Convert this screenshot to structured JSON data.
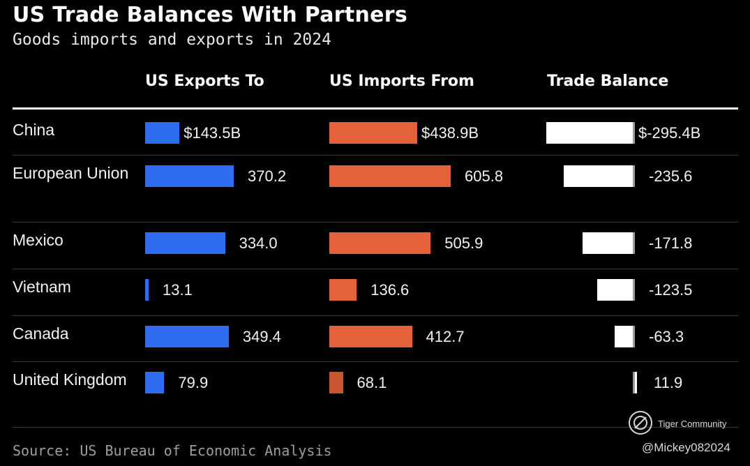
{
  "chart_data": {
    "type": "table",
    "title": "US Trade Balances With Partners",
    "subtitle": "Goods imports and exports in 2024",
    "columns": [
      "US Exports To",
      "US Imports From",
      "Trade Balance"
    ],
    "unit": "billion USD",
    "rows": [
      {
        "country": "China",
        "exports": 143.5,
        "imports": 438.9,
        "balance": -295.4,
        "exports_label": "$143.5B",
        "imports_label": "$438.9B",
        "balance_label": "$-295.4B"
      },
      {
        "country": "European Union",
        "exports": 370.2,
        "imports": 605.8,
        "balance": -235.6,
        "exports_label": "370.2",
        "imports_label": "605.8",
        "balance_label": "-235.6"
      },
      {
        "country": "Mexico",
        "exports": 334.0,
        "imports": 505.9,
        "balance": -171.8,
        "exports_label": "334.0",
        "imports_label": "505.9",
        "balance_label": "-171.8"
      },
      {
        "country": "Vietnam",
        "exports": 13.1,
        "imports": 136.6,
        "balance": -123.5,
        "exports_label": "13.1",
        "imports_label": "136.6",
        "balance_label": "-123.5"
      },
      {
        "country": "Canada",
        "exports": 349.4,
        "imports": 412.7,
        "balance": -63.3,
        "exports_label": "349.4",
        "imports_label": "412.7",
        "balance_label": "-63.3"
      },
      {
        "country": "United Kingdom",
        "exports": 79.9,
        "imports": 68.1,
        "balance": 11.9,
        "exports_label": "79.9",
        "imports_label": "68.1",
        "balance_label": "11.9"
      }
    ],
    "source": "Source: US Bureau of Economic Analysis",
    "colors": {
      "exports": "#2f6df0",
      "imports": "#e5613a",
      "balance": "#ffffff"
    }
  },
  "watermark": {
    "community": "Tiger Community",
    "user": "@Mickey082024"
  }
}
